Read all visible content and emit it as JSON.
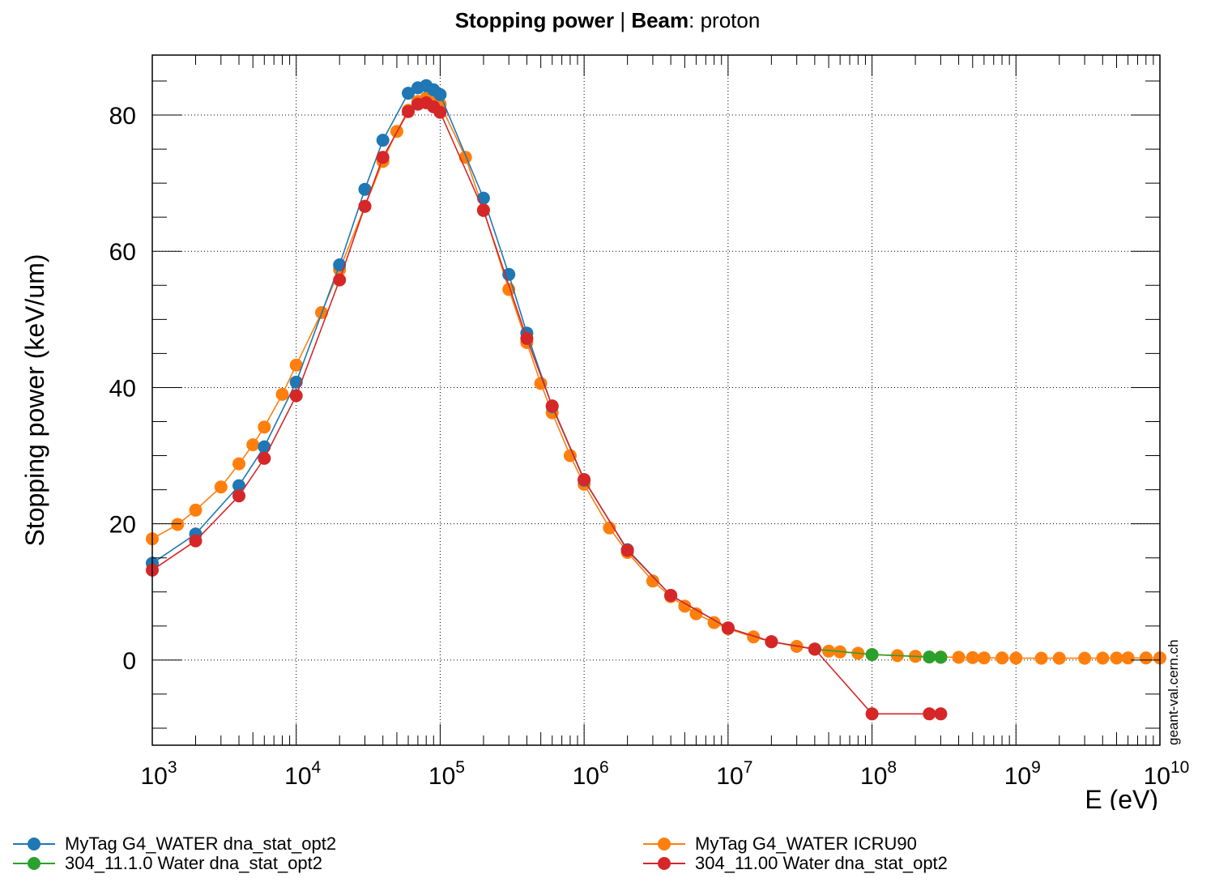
{
  "title": {
    "part1_bold": "Stopping power",
    "separator": " | ",
    "part2_bold": "Beam",
    "part2_rest": ": proton"
  },
  "watermark": "geant-val.cern.ch",
  "chart_data": {
    "type": "line",
    "title": "Stopping power | Beam: proton",
    "xlabel": "E (eV)",
    "ylabel": "Stopping power (keV/um)",
    "xscale": "log",
    "xlim": [
      1000,
      10000000000
    ],
    "ylim": [
      -12.5,
      88.8
    ],
    "grid": true,
    "legend_position": "bottom",
    "x_tick_labels": [
      {
        "base": "10",
        "exp": "3"
      },
      {
        "base": "10",
        "exp": "4"
      },
      {
        "base": "10",
        "exp": "5"
      },
      {
        "base": "10",
        "exp": "6"
      },
      {
        "base": "10",
        "exp": "7"
      },
      {
        "base": "10",
        "exp": "8"
      },
      {
        "base": "10",
        "exp": "9"
      },
      {
        "base": "10",
        "exp": "10"
      }
    ],
    "y_ticks": [
      0,
      20,
      40,
      60,
      80
    ],
    "series": [
      {
        "name": "MyTag G4_WATER dna_stat_opt2",
        "color": "#1f77b4",
        "x": [
          1000,
          2000,
          4000,
          6000,
          10000,
          20000,
          30000,
          40000,
          60000,
          70000,
          80000,
          90000,
          100000,
          200000,
          300000,
          400000,
          600000,
          1000000,
          2000000,
          4000000,
          10000000,
          20000000,
          40000000
        ],
        "y": [
          14.2,
          18.5,
          25.6,
          31.3,
          40.8,
          58.0,
          69.1,
          76.3,
          83.2,
          84.0,
          84.3,
          83.7,
          83.0,
          67.8,
          56.6,
          48.0,
          37.2,
          26.4,
          16.2,
          9.5,
          4.7,
          2.7,
          1.6
        ]
      },
      {
        "name": "304_11.1.0 Water dna_stat_opt2",
        "color": "#2ca02c",
        "x": [
          40000000,
          100000000,
          250000000,
          300000000
        ],
        "y": [
          1.6,
          0.8,
          0.45,
          0.4
        ]
      },
      {
        "name": "MyTag G4_WATER ICRU90",
        "color": "#ff7f0e",
        "x": [
          1000,
          1500,
          2000,
          3000,
          4000,
          5000,
          6000,
          8000,
          10000,
          15000,
          20000,
          30000,
          40000,
          50000,
          60000,
          70000,
          80000,
          90000,
          100000,
          150000,
          200000,
          300000,
          400000,
          500000,
          600000,
          800000,
          1000000,
          1500000,
          2000000,
          3000000,
          4000000,
          5000000,
          6000000,
          8000000,
          10000000,
          15000000,
          20000000,
          30000000,
          40000000,
          50000000,
          60000000,
          80000000,
          100000000,
          150000000,
          200000000,
          300000000,
          400000000,
          500000000,
          600000000,
          800000000,
          1000000000,
          1500000000,
          2000000000,
          3000000000,
          4000000000,
          5000000000,
          6000000000,
          8000000000,
          10000000000
        ],
        "y": [
          17.8,
          19.9,
          22.0,
          25.4,
          28.8,
          31.6,
          34.2,
          39.0,
          43.3,
          51.0,
          57.3,
          66.6,
          73.2,
          77.6,
          80.7,
          82.0,
          82.5,
          82.1,
          81.6,
          73.8,
          66.1,
          54.4,
          46.6,
          40.6,
          36.3,
          30.0,
          25.8,
          19.4,
          15.8,
          11.6,
          9.3,
          7.9,
          6.8,
          5.5,
          4.6,
          3.4,
          2.7,
          2.0,
          1.6,
          1.3,
          1.2,
          1.0,
          0.8,
          0.65,
          0.55,
          0.45,
          0.4,
          0.35,
          0.32,
          0.3,
          0.28,
          0.27,
          0.27,
          0.27,
          0.28,
          0.29,
          0.3,
          0.3,
          0.31
        ]
      },
      {
        "name": "304_11.00 Water dna_stat_opt2",
        "color": "#d62728",
        "x": [
          1000,
          2000,
          4000,
          6000,
          10000,
          20000,
          30000,
          40000,
          60000,
          70000,
          80000,
          90000,
          100000,
          200000,
          400000,
          600000,
          1000000,
          2000000,
          4000000,
          10000000,
          20000000,
          40000000,
          100000000,
          250000000,
          300000000
        ],
        "y": [
          13.2,
          17.5,
          24.1,
          29.6,
          38.8,
          55.8,
          66.6,
          73.8,
          80.5,
          81.6,
          81.8,
          81.2,
          80.4,
          66.0,
          47.2,
          37.3,
          26.5,
          16.1,
          9.5,
          4.7,
          2.7,
          1.6,
          -7.9,
          -7.9,
          -7.9
        ]
      }
    ]
  }
}
